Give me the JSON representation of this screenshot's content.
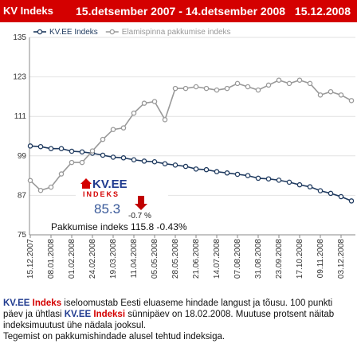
{
  "header": {
    "name": "KV Indeks",
    "period": "15.detsember 2007 - 14.detsember 2008",
    "date": "15.12.2008"
  },
  "chart_data": {
    "type": "line",
    "categories": [
      "15.12.2007",
      null,
      "08.01.2008",
      null,
      "01.02.2008",
      null,
      "24.02.2008",
      null,
      "19.03.2008",
      null,
      "11.04.2008",
      null,
      "05.05.2008",
      null,
      "28.05.2008",
      null,
      "21.06.2008",
      null,
      "14.07.2008",
      null,
      "07.08.2008",
      null,
      "31.08.2008",
      null,
      "23.09.2008",
      null,
      "17.10.2008",
      null,
      "09.11.2008",
      null,
      "03.12.2008",
      null
    ],
    "series": [
      {
        "name": "KV.EE Indeks",
        "color": "#1f3a5f",
        "values": [
          102,
          101.8,
          101.2,
          101.2,
          100.4,
          100.2,
          99.8,
          99.2,
          98.6,
          98.4,
          97.8,
          97.4,
          97.2,
          96.6,
          96.2,
          95.8,
          95,
          94.8,
          94.2,
          93.8,
          93.4,
          93,
          92.2,
          92,
          91.6,
          91,
          90.2,
          89.6,
          88.4,
          87.6,
          86.6,
          85.3
        ]
      },
      {
        "name": "Elamispinna pakkumise indeks",
        "color": "#999999",
        "values": [
          91.5,
          88.5,
          89.5,
          93.5,
          97,
          97,
          100.5,
          104,
          107,
          107.5,
          112,
          115,
          115.5,
          110,
          119.5,
          119.5,
          120,
          119.5,
          119,
          119.5,
          121,
          120,
          119,
          120.5,
          122,
          121,
          122,
          121,
          117.5,
          118.5,
          117.5,
          115.8
        ]
      }
    ],
    "ylim": [
      75,
      135
    ],
    "yticks": [
      75,
      87,
      99,
      111,
      123,
      135
    ],
    "grid": true
  },
  "inset": {
    "logo": "KV.EE",
    "logo_sub": "INDEKS",
    "value": "85.3",
    "change": "-0.7 %",
    "offer": "Pakkumise indeks 115.8 -0.43%"
  },
  "description": {
    "p1": [
      "KV.EE",
      " Indeks",
      " iseloomustab Eesti eluaseme hindade langust ja tõusu. 100 punkti päev ja ühtlasi ",
      "KV.EE",
      " Indeksi",
      " sünnipäev on 18.02.2008. Muutuse protsent näitab indeksimuutust ühe nädala jooksul."
    ],
    "p2": "Tegemist on pakkumishindade alusel tehtud indeksiga."
  }
}
